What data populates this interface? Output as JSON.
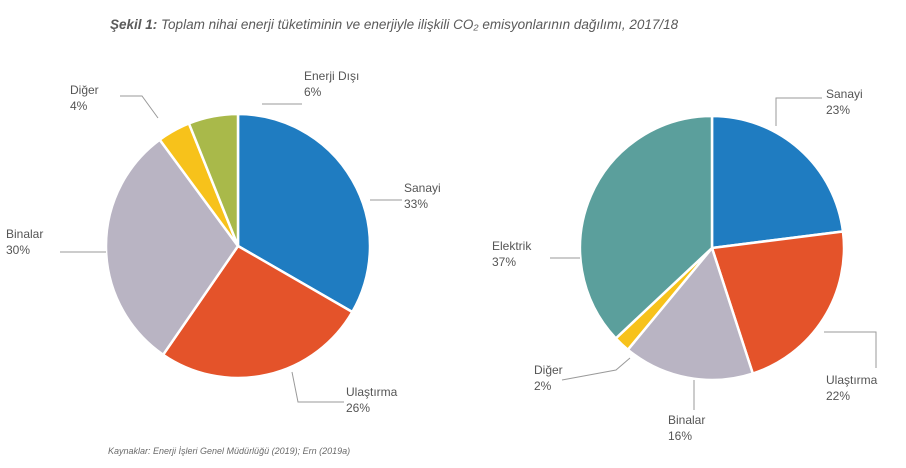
{
  "figure": {
    "label": "Şekil 1:",
    "title": "Toplam nihai enerji tüketiminin ve enerjiyle ilişkili CO₂ emisyonlarının dağılımı, 2017/18",
    "source": "Kaynaklar: Enerji İşleri Genel Müdürlüğü (2019); Ern (2019a)"
  },
  "chart_data": [
    {
      "type": "pie",
      "title": "",
      "slices": [
        {
          "label": "Sanayi",
          "value": 33,
          "color": "#1f7cc1",
          "pct": "33%"
        },
        {
          "label": "Ulaştırma",
          "value": 26,
          "color": "#e4532a",
          "pct": "26%"
        },
        {
          "label": "Binalar",
          "value": 30,
          "color": "#b9b4c3",
          "pct": "30%"
        },
        {
          "label": "Diğer",
          "value": 4,
          "color": "#f7c21b",
          "pct": "4%"
        },
        {
          "label": "Enerji Dışı",
          "value": 6,
          "color": "#a9b94a",
          "pct": "6%"
        }
      ]
    },
    {
      "type": "pie",
      "title": "",
      "slices": [
        {
          "label": "Sanayi",
          "value": 23,
          "color": "#1f7cc1",
          "pct": "23%"
        },
        {
          "label": "Ulaştırma",
          "value": 22,
          "color": "#e4532a",
          "pct": "22%"
        },
        {
          "label": "Binalar",
          "value": 16,
          "color": "#b9b4c3",
          "pct": "16%"
        },
        {
          "label": "Diğer",
          "value": 2,
          "color": "#f7c21b",
          "pct": "2%"
        },
        {
          "label": "Elektrik",
          "value": 37,
          "color": "#5b9f9c",
          "pct": "37%"
        }
      ]
    }
  ]
}
